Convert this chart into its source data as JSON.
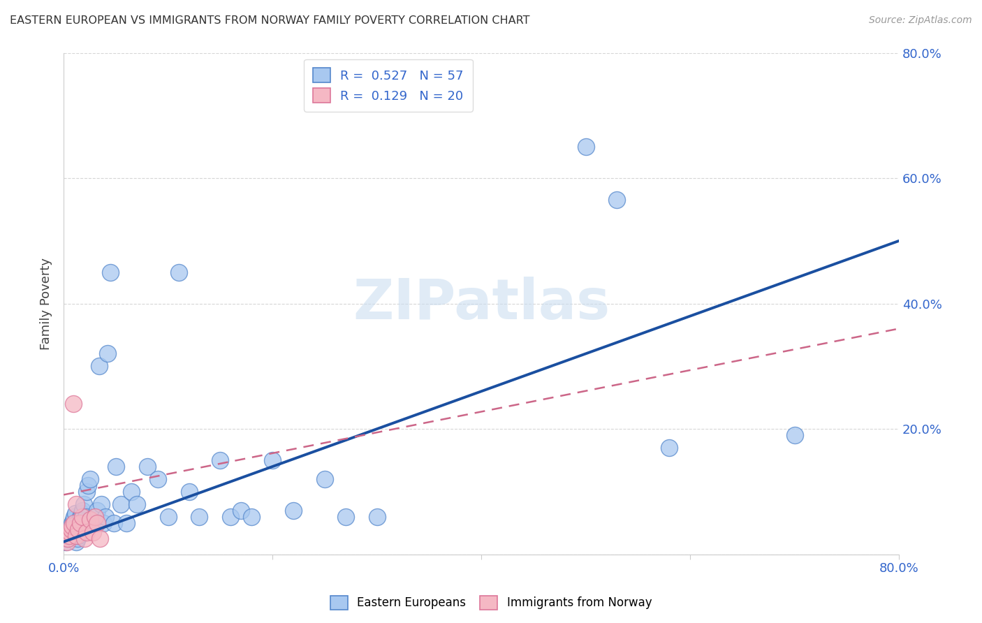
{
  "title": "EASTERN EUROPEAN VS IMMIGRANTS FROM NORWAY FAMILY POVERTY CORRELATION CHART",
  "source": "Source: ZipAtlas.com",
  "ylabel": "Family Poverty",
  "watermark": "ZIPatlas",
  "xlim": [
    0,
    0.8
  ],
  "ylim": [
    0,
    0.8
  ],
  "xticks": [
    0.0,
    0.2,
    0.4,
    0.6,
    0.8
  ],
  "yticks": [
    0.0,
    0.2,
    0.4,
    0.6,
    0.8
  ],
  "xtick_labels": [
    "0.0%",
    "",
    "",
    "",
    "80.0%"
  ],
  "ytick_labels_right": [
    "",
    "20.0%",
    "40.0%",
    "60.0%",
    "80.0%"
  ],
  "blue_scatter_color": "#a8c8f0",
  "blue_scatter_edge": "#5588cc",
  "pink_scatter_color": "#f5b8c4",
  "pink_scatter_edge": "#dd7799",
  "blue_line_color": "#1a4fa0",
  "pink_line_color": "#cc6688",
  "grid_color": "#cccccc",
  "background_color": "#ffffff",
  "legend_R1": "0.527",
  "legend_N1": "57",
  "legend_R2": "0.129",
  "legend_N2": "20",
  "tick_color": "#3366cc",
  "blue_x": [
    0.002,
    0.003,
    0.004,
    0.005,
    0.006,
    0.007,
    0.008,
    0.009,
    0.01,
    0.011,
    0.012,
    0.013,
    0.014,
    0.015,
    0.016,
    0.017,
    0.018,
    0.019,
    0.02,
    0.021,
    0.022,
    0.023,
    0.025,
    0.027,
    0.03,
    0.032,
    0.034,
    0.036,
    0.038,
    0.04,
    0.042,
    0.045,
    0.048,
    0.05,
    0.055,
    0.06,
    0.065,
    0.07,
    0.08,
    0.09,
    0.1,
    0.11,
    0.12,
    0.13,
    0.15,
    0.16,
    0.17,
    0.18,
    0.2,
    0.22,
    0.25,
    0.27,
    0.3,
    0.5,
    0.53,
    0.58,
    0.7
  ],
  "blue_y": [
    0.02,
    0.025,
    0.03,
    0.035,
    0.04,
    0.045,
    0.05,
    0.055,
    0.06,
    0.065,
    0.02,
    0.025,
    0.03,
    0.035,
    0.06,
    0.065,
    0.07,
    0.08,
    0.05,
    0.06,
    0.1,
    0.11,
    0.12,
    0.05,
    0.06,
    0.07,
    0.3,
    0.08,
    0.05,
    0.06,
    0.32,
    0.45,
    0.05,
    0.14,
    0.08,
    0.05,
    0.1,
    0.08,
    0.14,
    0.12,
    0.06,
    0.45,
    0.1,
    0.06,
    0.15,
    0.06,
    0.07,
    0.06,
    0.15,
    0.07,
    0.12,
    0.06,
    0.06,
    0.65,
    0.565,
    0.17,
    0.19
  ],
  "pink_x": [
    0.003,
    0.004,
    0.005,
    0.006,
    0.007,
    0.008,
    0.009,
    0.01,
    0.012,
    0.014,
    0.016,
    0.018,
    0.02,
    0.022,
    0.025,
    0.028,
    0.03,
    0.032,
    0.035,
    0.012
  ],
  "pink_y": [
    0.02,
    0.025,
    0.03,
    0.035,
    0.04,
    0.045,
    0.24,
    0.05,
    0.03,
    0.04,
    0.05,
    0.06,
    0.025,
    0.035,
    0.055,
    0.035,
    0.06,
    0.05,
    0.025,
    0.08
  ],
  "blue_line_x0": 0.0,
  "blue_line_y0": 0.02,
  "blue_line_x1": 0.8,
  "blue_line_y1": 0.5,
  "pink_line_x0": 0.0,
  "pink_line_y0": 0.095,
  "pink_line_x1": 0.8,
  "pink_line_y1": 0.36
}
